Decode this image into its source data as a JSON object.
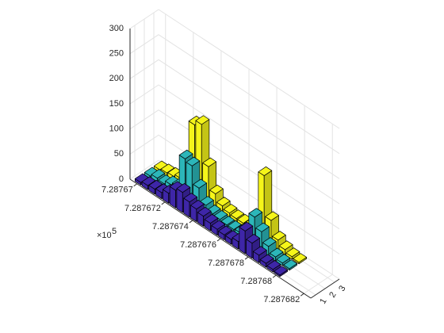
{
  "chart_data": {
    "type": "bar3",
    "x": [
      7.28767,
      7.2876705,
      7.287671,
      7.2876715,
      7.287672,
      7.2876725,
      7.287673,
      7.2876735,
      7.287674,
      7.2876745,
      7.287675,
      7.2876755,
      7.287676,
      7.2876765,
      7.287677,
      7.2876775,
      7.287678,
      7.2876785,
      7.287679,
      7.2876795,
      7.28768
    ],
    "series": [
      {
        "color": "#3e26a8",
        "depth": 1,
        "values": [
          5,
          8,
          10,
          12,
          20,
          35,
          40,
          30,
          25,
          20,
          15,
          12,
          10,
          10,
          15,
          45,
          30,
          15,
          8,
          5,
          3
        ]
      },
      {
        "color": "#2cb6b9",
        "depth": 2,
        "values": [
          5,
          10,
          8,
          15,
          20,
          85,
          80,
          45,
          20,
          12,
          10,
          8,
          8,
          10,
          20,
          60,
          40,
          20,
          8,
          5,
          3
        ]
      },
      {
        "color": "#f5f51a",
        "depth": 3,
        "values": [
          5,
          8,
          10,
          15,
          40,
          140,
          150,
          75,
          30,
          15,
          10,
          8,
          8,
          10,
          30,
          130,
          50,
          20,
          10,
          5,
          3
        ]
      }
    ],
    "xlim": [
      7.2876695,
      7.2876825
    ],
    "xticks": [
      7.28767,
      7.287672,
      7.287674,
      7.287676,
      7.287678,
      7.28768,
      7.287682
    ],
    "x_exponent_base": "×10",
    "x_exponent": "5",
    "depthlim": [
      0.5,
      3.5
    ],
    "depthticks": [
      1,
      2,
      3
    ],
    "zlim": [
      0,
      300
    ],
    "zticks": [
      0,
      50,
      100,
      150,
      200,
      250,
      300
    ],
    "grid": true
  }
}
